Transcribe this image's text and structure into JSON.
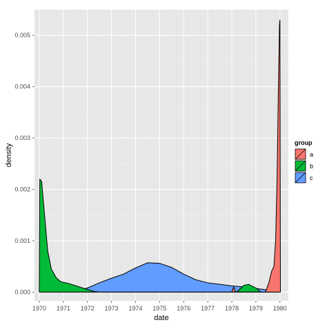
{
  "chart_data": {
    "type": "area",
    "xlabel": "date",
    "ylabel": "density",
    "xlim": [
      1969.8,
      1980.35
    ],
    "ylim": [
      -0.00017,
      0.0055
    ],
    "x_ticks": [
      "1970",
      "1971",
      "1972",
      "1973",
      "1974",
      "1975",
      "1976",
      "1977",
      "1978",
      "1979",
      "1980"
    ],
    "y_ticks": [
      "0.000",
      "0.001",
      "0.002",
      "0.003",
      "0.004",
      "0.005"
    ],
    "grid": true,
    "legend": {
      "title": "group",
      "position": "right"
    },
    "series": [
      {
        "name": "c",
        "color": "#619CFF",
        "points": [
          [
            1970.0,
            0.0
          ],
          [
            1970.8,
            0.0
          ],
          [
            1971.5,
            1e-05
          ],
          [
            1972.0,
            8e-05
          ],
          [
            1972.5,
            0.00018
          ],
          [
            1973.0,
            0.00027
          ],
          [
            1973.5,
            0.00035
          ],
          [
            1974.0,
            0.00047
          ],
          [
            1974.5,
            0.00057
          ],
          [
            1975.0,
            0.00056
          ],
          [
            1975.5,
            0.00048
          ],
          [
            1976.0,
            0.00035
          ],
          [
            1976.5,
            0.00024
          ],
          [
            1977.0,
            0.00018
          ],
          [
            1977.5,
            0.00015
          ],
          [
            1978.0,
            0.00012
          ],
          [
            1978.5,
            0.0001
          ],
          [
            1979.0,
            7e-05
          ],
          [
            1979.5,
            4e-05
          ],
          [
            1979.9,
            1e-05
          ],
          [
            1980.0,
            0.0
          ]
        ]
      },
      {
        "name": "b",
        "color": "#00BA38",
        "points": [
          [
            1970.0,
            0.0
          ],
          [
            1970.02,
            0.0022
          ],
          [
            1970.1,
            0.00215
          ],
          [
            1970.2,
            0.0016
          ],
          [
            1970.35,
            0.0008
          ],
          [
            1970.5,
            0.00045
          ],
          [
            1970.7,
            0.00028
          ],
          [
            1970.9,
            0.0002
          ],
          [
            1971.2,
            0.00017
          ],
          [
            1971.6,
            0.00011
          ],
          [
            1972.0,
            5e-05
          ],
          [
            1972.3,
            1e-05
          ],
          [
            1972.5,
            0.0
          ],
          [
            1978.2,
            0.0
          ],
          [
            1978.5,
            0.00013
          ],
          [
            1978.7,
            0.00015
          ],
          [
            1979.0,
            8e-05
          ],
          [
            1979.2,
            0.0
          ]
        ]
      },
      {
        "name": "a",
        "color": "#F8766D",
        "points": [
          [
            1978.0,
            0.0
          ],
          [
            1978.08,
            0.0001
          ],
          [
            1978.15,
            0.0
          ],
          [
            1979.4,
            0.0
          ],
          [
            1979.55,
            0.0002
          ],
          [
            1979.65,
            0.0004
          ],
          [
            1979.75,
            0.0005
          ],
          [
            1979.82,
            0.001
          ],
          [
            1979.88,
            0.0022
          ],
          [
            1979.93,
            0.0038
          ],
          [
            1979.98,
            0.0052
          ],
          [
            1980.0,
            0.0053
          ],
          [
            1980.02,
            0.0
          ]
        ]
      }
    ]
  }
}
